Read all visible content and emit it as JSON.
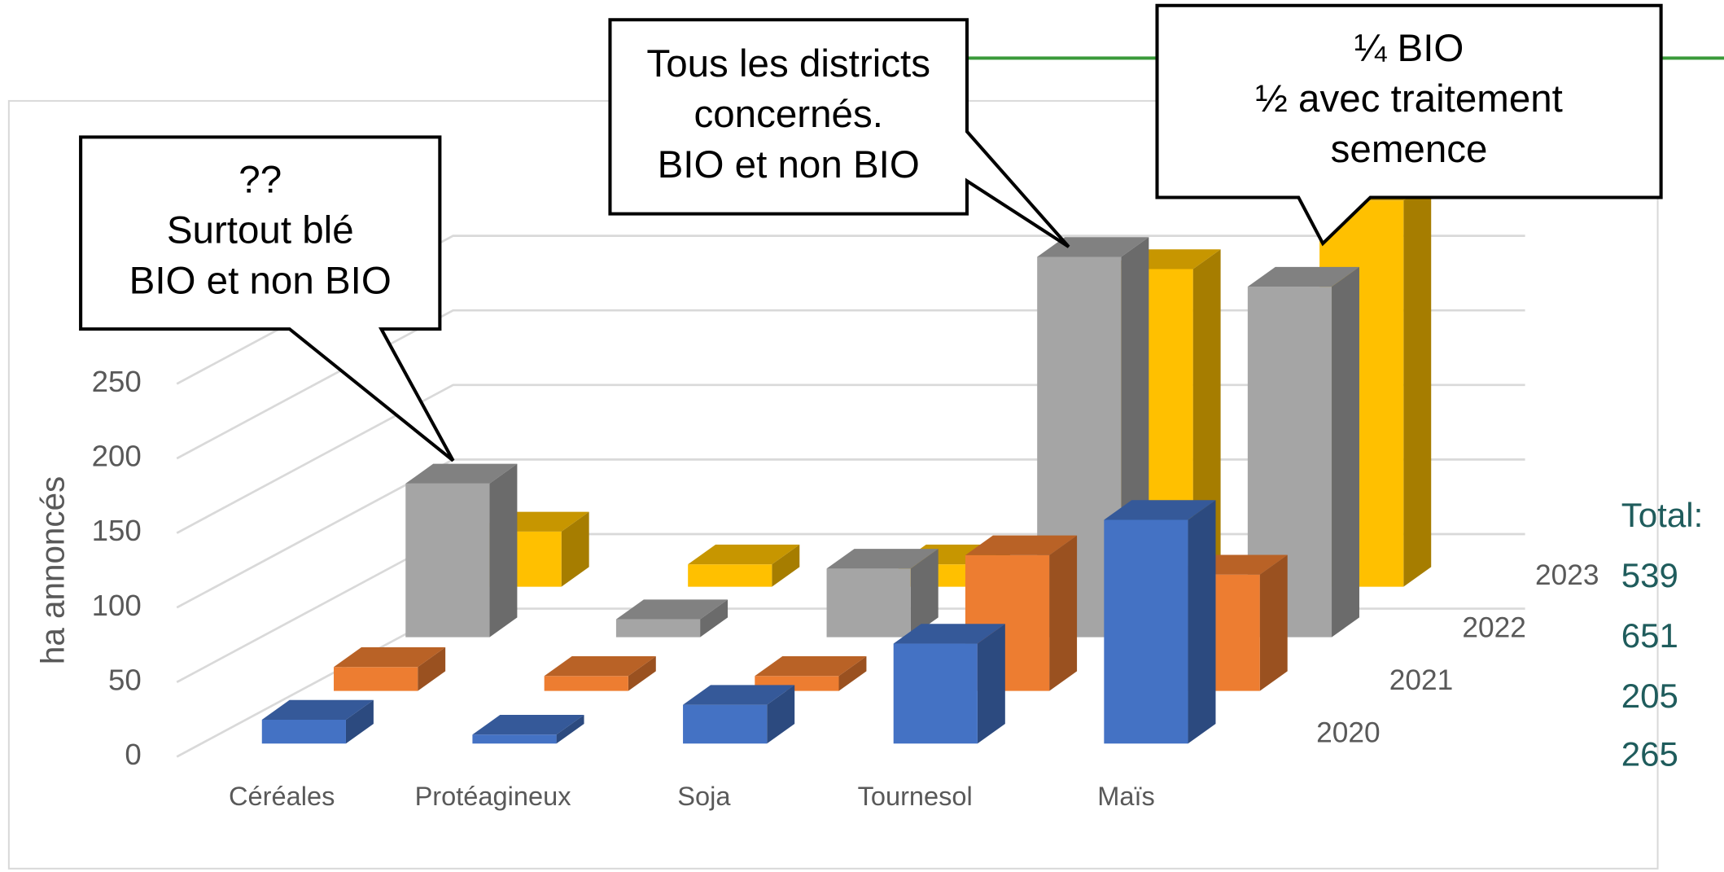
{
  "chart_data": {
    "type": "bar3d",
    "y_label": "ha annoncés",
    "categories": [
      "Céréales",
      "Protéagineux",
      "Soja",
      "Tournesol",
      "Maïs"
    ],
    "series": [
      {
        "name": "2020",
        "color": "#4472c4",
        "values": [
          16,
          6,
          26,
          67,
          150
        ]
      },
      {
        "name": "2021",
        "color": "#ed7d31",
        "values": [
          16,
          10,
          10,
          91,
          78
        ]
      },
      {
        "name": "2022",
        "color": "#a5a5a5",
        "values": [
          103,
          12,
          46,
          255,
          235
        ]
      },
      {
        "name": "2023",
        "color": "#ffc000",
        "values": [
          37,
          15,
          15,
          213,
          259
        ]
      }
    ],
    "ylim": [
      0,
      250
    ],
    "yticks": [
      0,
      50,
      100,
      150,
      200,
      250
    ],
    "grid": true,
    "totals_label": "Total:",
    "totals": [
      {
        "value": 265,
        "label": "265"
      },
      {
        "value": 205,
        "label": "205"
      },
      {
        "value": 651,
        "label": "651"
      },
      {
        "value": 539,
        "label": "539"
      }
    ],
    "annotations": [
      {
        "lines": [
          "??",
          "Surtout blé",
          "BIO et non BIO"
        ]
      },
      {
        "lines": [
          "Tous les districts",
          "concernés.",
          "BIO et non BIO"
        ]
      },
      {
        "lines": [
          "¼ BIO",
          "½ avec traitement",
          "semence"
        ]
      }
    ]
  }
}
